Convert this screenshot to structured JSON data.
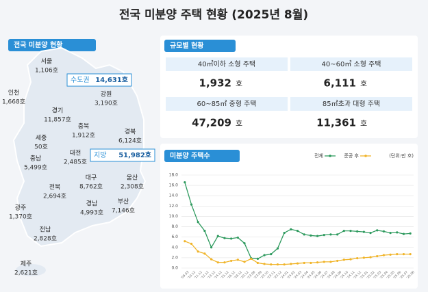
{
  "header": {
    "title": "전국 미분양 주택 현황 (2025년 8월)"
  },
  "map_panel": {
    "label": "전국 미분양 현황",
    "summary": [
      {
        "name": "수도권",
        "value": "14,631호"
      },
      {
        "name": "지방",
        "value": "51,982호"
      }
    ],
    "regions": [
      {
        "name": "서울",
        "value": "1,106호"
      },
      {
        "name": "인천",
        "value": "1,668호"
      },
      {
        "name": "경기",
        "value": "11,857호"
      },
      {
        "name": "강원",
        "value": "3,190호"
      },
      {
        "name": "충북",
        "value": "1,912호"
      },
      {
        "name": "세종",
        "value": "50호"
      },
      {
        "name": "충남",
        "value": "5,499호"
      },
      {
        "name": "대전",
        "value": "2,485호"
      },
      {
        "name": "경북",
        "value": "6,124호"
      },
      {
        "name": "전북",
        "value": "2,694호"
      },
      {
        "name": "대구",
        "value": "8,762호"
      },
      {
        "name": "울산",
        "value": "2,308호"
      },
      {
        "name": "경남",
        "value": "4,993호"
      },
      {
        "name": "부산",
        "value": "7,146호"
      },
      {
        "name": "광주",
        "value": "1,370호"
      },
      {
        "name": "전남",
        "value": "2,828호"
      },
      {
        "name": "제주",
        "value": "2,621호"
      }
    ]
  },
  "size_panel": {
    "label": "규모별 현황",
    "cells": [
      {
        "name": "40㎡이하 소형 주택",
        "value": "1,932",
        "unit": "호"
      },
      {
        "name": "40~60㎡ 소형 주택",
        "value": "6,111",
        "unit": "호"
      },
      {
        "name": "60~85㎡ 중형 주택",
        "value": "47,209",
        "unit": "호"
      },
      {
        "name": "85㎡초과 대형 주택",
        "value": "11,361",
        "unit": "호"
      }
    ]
  },
  "chart_data": {
    "type": "line",
    "title": "미분양 주택수",
    "unit_note": "(단위:만 호)",
    "categories": [
      "'09.03",
      "'10.12",
      "'11.12",
      "'12.12",
      "'13.12",
      "'14.12",
      "'15.12",
      "'16.12",
      "'18.12",
      "'20.12",
      "'23.08",
      "'23.09",
      "'23.10",
      "'23.11",
      "'23.12",
      "'24.01",
      "'24.02",
      "'24.03",
      "'24.04",
      "'24.05",
      "'24.06",
      "'24.07",
      "'24.08",
      "'24.09",
      "'24.10",
      "'24.11",
      "'24.12",
      "'25.01",
      "'25.02",
      "'25.03",
      "'25.04",
      "'25.05",
      "'25.06",
      "'25.07",
      "'25.08"
    ],
    "series": [
      {
        "name": "전체",
        "color": "#2e9a5e",
        "values": [
          16.6,
          12.3,
          8.9,
          7.2,
          4.0,
          6.2,
          5.8,
          5.7,
          5.9,
          4.8,
          1.9,
          1.8,
          2.5,
          2.7,
          3.8,
          6.8,
          7.5,
          7.2,
          6.5,
          6.3,
          6.2,
          6.4,
          6.5,
          6.5,
          7.2,
          7.2,
          7.1,
          7.0,
          6.8,
          7.3,
          7.1,
          6.8,
          6.9,
          6.6,
          6.7
        ]
      },
      {
        "name": "준공 후",
        "color": "#f0b429",
        "values": [
          5.2,
          4.7,
          3.2,
          2.8,
          1.7,
          1.1,
          1.1,
          1.4,
          1.6,
          1.2,
          1.8,
          1.0,
          0.8,
          0.7,
          0.7,
          0.7,
          0.8,
          0.9,
          1.0,
          1.0,
          1.1,
          1.2,
          1.2,
          1.4,
          1.6,
          1.7,
          1.9,
          2.0,
          2.1,
          2.3,
          2.5,
          2.6,
          2.7,
          2.7,
          2.7
        ]
      }
    ],
    "ylim": [
      0,
      18
    ],
    "yticks": [
      {
        "value": 0,
        "label": "0.0"
      },
      {
        "value": 2,
        "label": "2.0"
      },
      {
        "value": 4,
        "label": "4.0"
      },
      {
        "value": 6,
        "label": "6.0"
      },
      {
        "value": 8,
        "label": "8.0"
      },
      {
        "value": 10,
        "label": "10.0"
      },
      {
        "value": 12,
        "label": "12.0"
      },
      {
        "value": 14,
        "label": "14.0"
      },
      {
        "value": 16,
        "label": "16.0"
      },
      {
        "value": 18,
        "label": "18.0"
      }
    ],
    "grid": true
  }
}
